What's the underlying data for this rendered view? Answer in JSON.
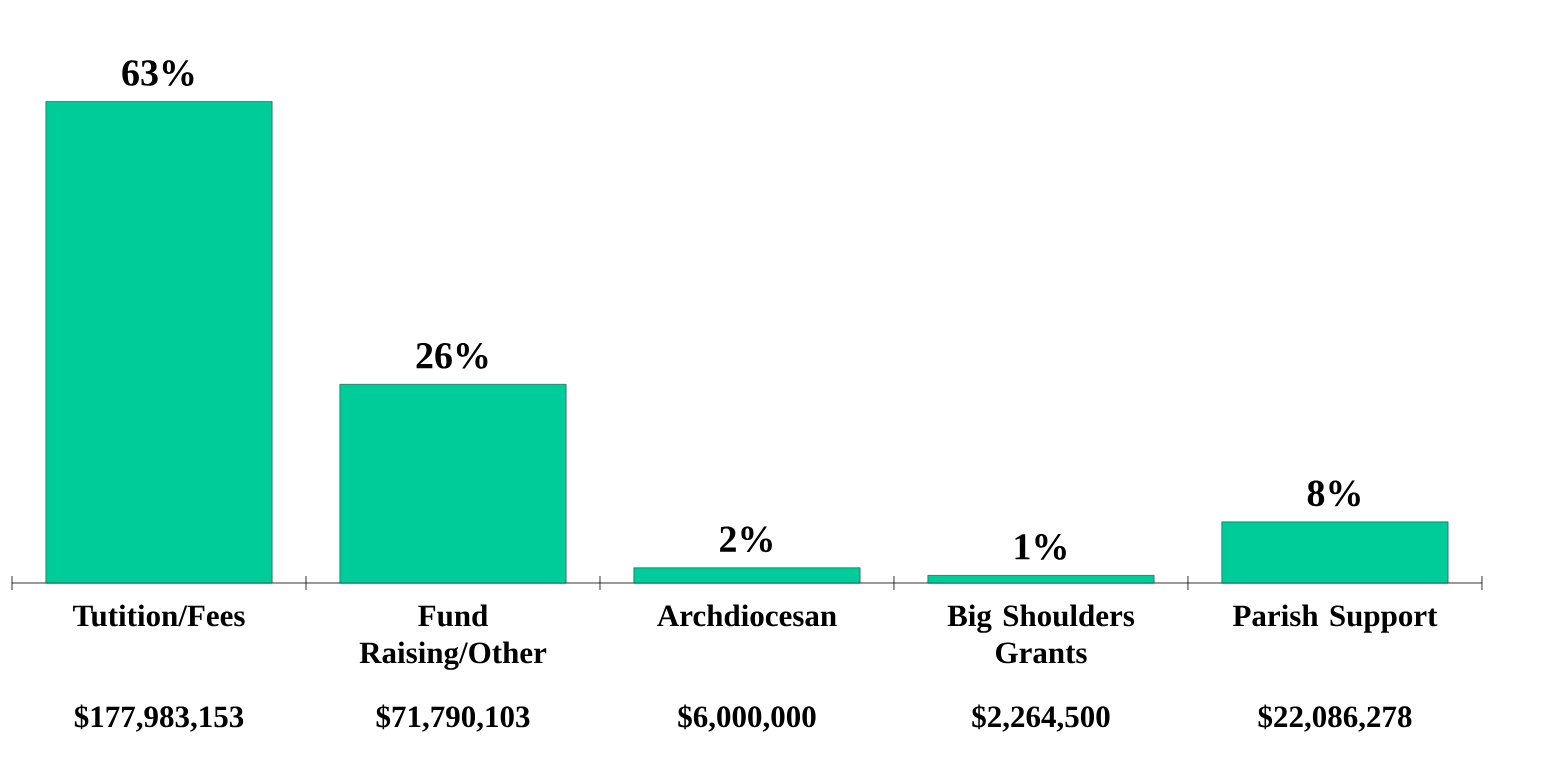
{
  "chart_data": {
    "type": "bar",
    "categories": [
      "Tutition/Fees",
      "Fund Raising/Other",
      "Archdiocesan",
      "Big Shoulders Grants",
      "Parish Support"
    ],
    "values": [
      63,
      26,
      2,
      1,
      8
    ],
    "value_labels": [
      "63%",
      "26%",
      "2%",
      "1%",
      "8%"
    ],
    "color": "#00cc99",
    "annotations": [
      "$177,983,153",
      "$71,790,103",
      "$6,000,000",
      "$2,264,500",
      "$22,086,278"
    ]
  }
}
